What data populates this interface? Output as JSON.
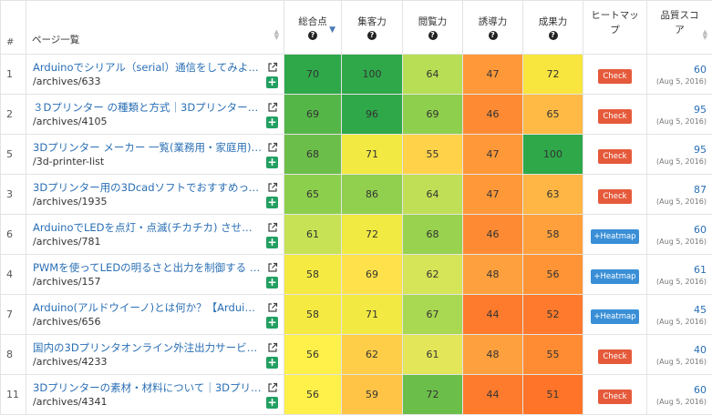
{
  "headers": {
    "num": "#",
    "page": "ページ一覧",
    "total": "総合点",
    "attract": "集客力",
    "browse": "閲覧力",
    "guide": "誘導力",
    "result": "成果力",
    "heatmap": "ヒートマップ",
    "quality": "品質スコア"
  },
  "help_glyph": "?",
  "colors": {
    "title_link": "#2a6fb5",
    "check_button": "#e55a3b",
    "heatmap_button": "#3a8fd6",
    "add_button": "#22a063"
  },
  "rows": [
    {
      "num": "1",
      "title": "Arduinoでシリアル（serial）通信をしてみよう｜…",
      "path": "/archives/633",
      "scores": [
        70,
        100,
        64,
        47,
        72
      ],
      "colors": [
        "#2fa84a",
        "#2fa84a",
        "#b7de55",
        "#fe9838",
        "#f8e53e"
      ],
      "action": "Check",
      "quality": "60",
      "date": "(Aug 5, 2016)"
    },
    {
      "num": "2",
      "title": "３Dプリンター の種類と方式｜3Dプリンターの…",
      "path": "/archives/4105",
      "scores": [
        69,
        96,
        69,
        46,
        65
      ],
      "colors": [
        "#55b648",
        "#2fa84a",
        "#8ecf4d",
        "#fe8b34",
        "#ffba45"
      ],
      "action": "Check",
      "quality": "95",
      "date": "(Aug 5, 2016)"
    },
    {
      "num": "5",
      "title": "3Dプリンター メーカー 一覧(業務用・家庭用)｜…",
      "path": "/3d-printer-list",
      "scores": [
        68,
        71,
        55,
        47,
        100
      ],
      "colors": [
        "#6cbe4a",
        "#f2ea42",
        "#ffd24a",
        "#fe9838",
        "#2fa84a"
      ],
      "action": "Check",
      "quality": "95",
      "date": "(Aug 5, 2016)"
    },
    {
      "num": "3",
      "title": "3Dプリンター用の3Dcadソフトでおすすめって…",
      "path": "/archives/1935",
      "scores": [
        65,
        86,
        64,
        47,
        63
      ],
      "colors": [
        "#8ccf4d",
        "#90d04e",
        "#c1df56",
        "#fe9838",
        "#ffb644"
      ],
      "action": "Check",
      "quality": "87",
      "date": "(Aug 5, 2016)"
    },
    {
      "num": "6",
      "title": "ArduinoでLEDを点灯・点滅(チカチカ) させる…",
      "path": "/archives/781",
      "scores": [
        61,
        72,
        68,
        46,
        58
      ],
      "colors": [
        "#c7e355",
        "#f0ea42",
        "#98d24f",
        "#fe8b34",
        "#ffa03d"
      ],
      "action": "+Heatmap",
      "quality": "60",
      "date": "(Aug 5, 2016)"
    },
    {
      "num": "4",
      "title": "PWMを使ってLEDの明るさと出力を制御する ～…",
      "path": "/archives/157",
      "scores": [
        58,
        69,
        62,
        48,
        56
      ],
      "colors": [
        "#f4ea42",
        "#ffe24b",
        "#d6e457",
        "#fea03d",
        "#ff9436"
      ],
      "action": "+Heatmap",
      "quality": "61",
      "date": "(Aug 5, 2016)"
    },
    {
      "num": "7",
      "title": "Arduino(アルドウイーノ)とは何か？【Arduino…",
      "path": "/archives/656",
      "scores": [
        58,
        71,
        67,
        44,
        52
      ],
      "colors": [
        "#f4ea42",
        "#f2ea42",
        "#a9d852",
        "#fe7a2d",
        "#ff7a2d"
      ],
      "action": "+Heatmap",
      "quality": "45",
      "date": "(Aug 5, 2016)"
    },
    {
      "num": "8",
      "title": "国内の3Dプリンタオンライン外注出力サービス…",
      "path": "/archives/4233",
      "scores": [
        56,
        62,
        61,
        48,
        55
      ],
      "colors": [
        "#fff04a",
        "#ffce49",
        "#e4e659",
        "#fea03d",
        "#ff8c33"
      ],
      "action": "Check",
      "quality": "40",
      "date": "(Aug 5, 2016)"
    },
    {
      "num": "11",
      "title": "3Dプリンターの素材・材料について｜3Dプリ…",
      "path": "/archives/4341",
      "scores": [
        56,
        59,
        72,
        44,
        51
      ],
      "colors": [
        "#fff04a",
        "#ffc446",
        "#6cbe4a",
        "#fe7a2d",
        "#ff7429"
      ],
      "action": "Check",
      "quality": "60",
      "date": "(Aug 5, 2016)"
    }
  ]
}
